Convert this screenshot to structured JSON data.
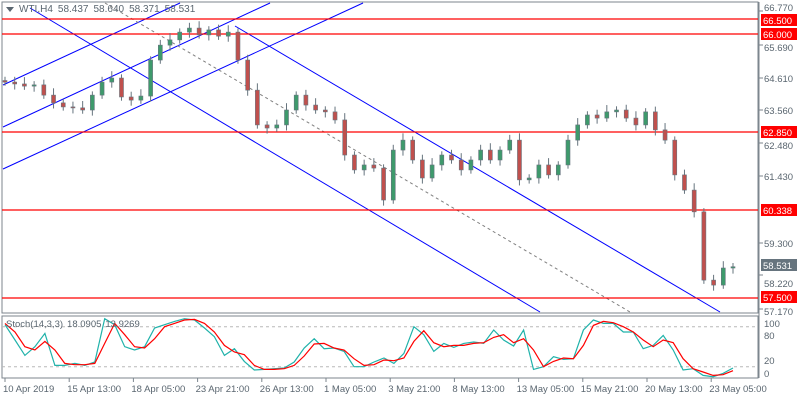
{
  "header": {
    "symbol": "WTI,H4",
    "open": "58.437",
    "high": "58.640",
    "low": "58.371",
    "close": "58.531"
  },
  "price_axis": {
    "ticks": [
      "66.770",
      "65.690",
      "64.610",
      "63.560",
      "62.480",
      "61.430",
      "59.300",
      "58.220",
      "57.170"
    ],
    "current_price": "58.531"
  },
  "horizontal_levels": [
    {
      "label": "66.500",
      "color": "#ff0000"
    },
    {
      "label": "66.000",
      "color": "#ff0000"
    },
    {
      "label": "62.850",
      "color": "#ff0000"
    },
    {
      "label": "60.338",
      "color": "#ff0000"
    },
    {
      "label": "57.500",
      "color": "#ff0000"
    }
  ],
  "time_axis": [
    "10 Apr 2019",
    "15 Apr 13:00",
    "18 Apr 05:00",
    "23 Apr 21:00",
    "26 Apr 13:00",
    "1 May 05:00",
    "3 May 21:00",
    "8 May 13:00",
    "13 May 05:00",
    "15 May 21:00",
    "20 May 13:00",
    "23 May 05:00"
  ],
  "stochastic": {
    "label": "Stoch(14,3,3)",
    "main_value": "18.0905",
    "signal_value": "13.9269",
    "levels": [
      "100",
      "80",
      "20",
      "0"
    ],
    "main_color": "#20b2aa",
    "signal_color": "#ff0000"
  },
  "colors": {
    "bull": "#3e9a6c",
    "bear": "#c0504d",
    "wick": "#66747e",
    "channel": "#0000ff",
    "midline": "#808080"
  },
  "chart_data": [
    {
      "type": "candlestick",
      "title": "WTI,H4",
      "ylim": [
        57.17,
        66.77
      ],
      "close": [
        64.48,
        64.42,
        64.35,
        64.39,
        64.06,
        63.81,
        63.68,
        63.65,
        63.58,
        64.06,
        64.48,
        64.61,
        64.0,
        63.9,
        64.03,
        65.19,
        65.67,
        65.84,
        66.09,
        66.22,
        66.0,
        66.16,
        65.96,
        66.09,
        65.19,
        64.22,
        63.1,
        63.0,
        63.1,
        63.58,
        64.06,
        63.74,
        63.58,
        63.52,
        63.26,
        62.13,
        61.65,
        61.81,
        61.71,
        60.68,
        62.29,
        62.61,
        61.97,
        61.39,
        61.81,
        62.13,
        61.97,
        61.65,
        61.97,
        62.29,
        61.97,
        62.29,
        62.61,
        61.33,
        61.39,
        61.81,
        61.49,
        61.81,
        62.61,
        63.1,
        63.42,
        63.32,
        63.52,
        63.58,
        63.32,
        63.1,
        63.52,
        62.94,
        62.61,
        61.49,
        61.0,
        60.3,
        58.1,
        57.94,
        58.49,
        58.531
      ]
    },
    {
      "type": "line",
      "title": "Stoch(14,3,3)",
      "ylim": [
        0,
        100
      ],
      "series": [
        {
          "name": "main",
          "values": [
            83,
            60,
            37,
            50,
            70,
            22,
            22,
            25,
            22,
            27,
            92,
            83,
            50,
            45,
            50,
            78,
            83,
            88,
            92,
            90,
            78,
            65,
            37,
            47,
            28,
            15,
            16,
            17,
            18,
            27,
            48,
            62,
            47,
            48,
            43,
            20,
            20,
            27,
            33,
            25,
            40,
            80,
            68,
            43,
            55,
            49,
            55,
            57,
            55,
            75,
            60,
            51,
            75,
            16,
            20,
            35,
            31,
            32,
            75,
            90,
            85,
            85,
            72,
            72,
            47,
            52,
            67,
            45,
            15,
            17,
            7,
            5,
            10,
            18
          ]
        },
        {
          "name": "signal",
          "values": [
            85,
            72,
            50,
            45,
            58,
            45,
            25,
            23,
            23,
            25,
            55,
            85,
            68,
            50,
            48,
            62,
            80,
            85,
            90,
            91,
            85,
            72,
            52,
            42,
            38,
            22,
            16,
            16,
            17,
            22,
            36,
            54,
            55,
            48,
            45,
            32,
            22,
            23,
            30,
            29,
            33,
            58,
            74,
            56,
            50,
            52,
            52,
            55,
            56,
            64,
            68,
            56,
            62,
            45,
            20,
            28,
            33,
            32,
            52,
            82,
            88,
            86,
            80,
            72,
            60,
            50,
            60,
            56,
            32,
            17,
            12,
            7,
            8,
            14
          ]
        }
      ]
    }
  ]
}
